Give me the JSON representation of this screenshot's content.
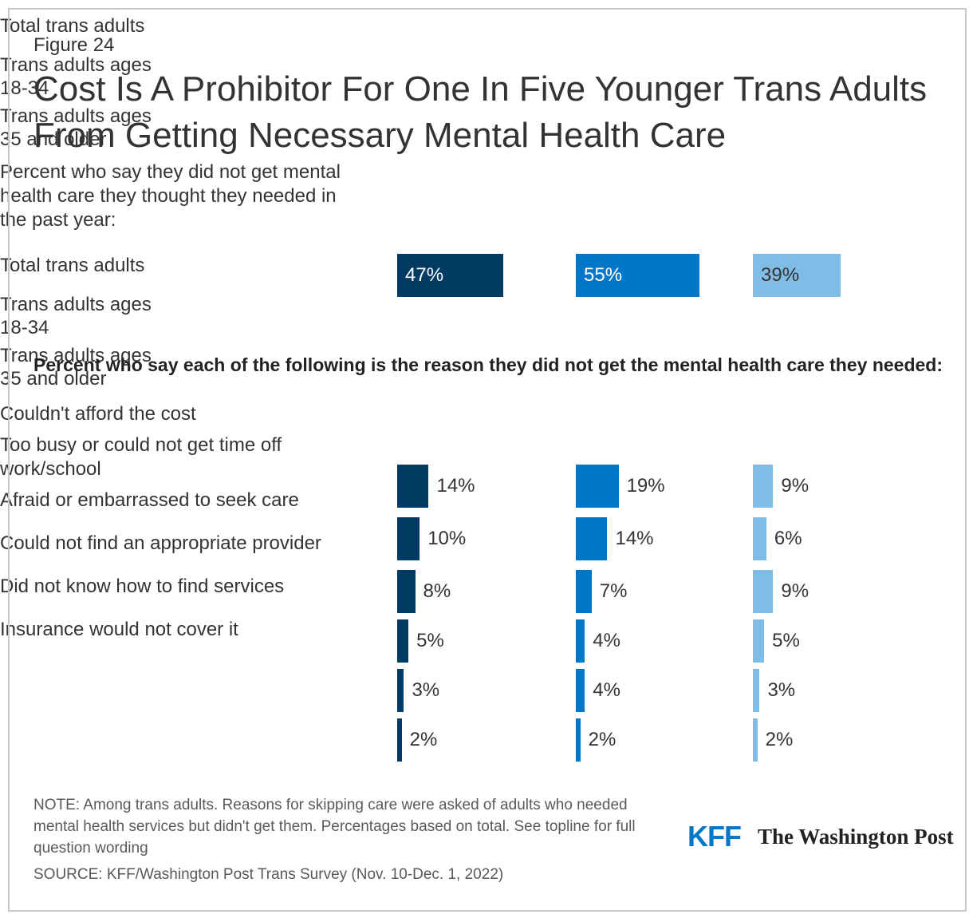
{
  "figure_label": "Figure 24",
  "title": "Cost Is A Prohibitor For One In Five Younger Trans Adults From Getting Necessary Mental Health Care",
  "note": "NOTE: Among trans adults. Reasons for skipping care were asked of adults who needed mental health services but didn't get them. Percentages based on total. See topline for full question wording",
  "source": "SOURCE: KFF/Washington Post Trans Survey (Nov. 10-Dec. 1, 2022)",
  "logos": [
    "KFF",
    "The Washington Post"
  ],
  "chart_data": [
    {
      "type": "bar",
      "categories": [
        "Percent who say they did not get mental health care they thought they needed in the past year:"
      ],
      "series": [
        {
          "name": "Total trans adults",
          "color": "#003b64",
          "values": [
            47
          ],
          "value_labels": [
            "47%"
          ]
        },
        {
          "name": "Trans adults ages 18-34",
          "color": "#0077c8",
          "values": [
            55
          ],
          "value_labels": [
            "55%"
          ]
        },
        {
          "name": "Trans adults ages 35 and older",
          "color": "#7fbde6",
          "values": [
            39
          ],
          "value_labels": [
            "39%"
          ]
        }
      ]
    },
    {
      "type": "bar",
      "subtitle": "Percent who say each of the following is the reason they did not get the mental health care they needed:",
      "categories": [
        "Couldn't afford the cost",
        "Too busy or could not get time off work/school",
        "Afraid or embarrassed to seek care",
        "Could not find an appropriate provider",
        "Did not know how to find services",
        "Insurance would not cover it"
      ],
      "series": [
        {
          "name": "Total trans adults",
          "color": "#003b64",
          "values": [
            14,
            10,
            8,
            5,
            3,
            2
          ],
          "value_labels": [
            "14%",
            "10%",
            "8%",
            "5%",
            "3%",
            "2%"
          ]
        },
        {
          "name": "Trans adults ages 18-34",
          "color": "#0077c8",
          "values": [
            19,
            14,
            7,
            4,
            4,
            2
          ],
          "value_labels": [
            "19%",
            "14%",
            "7%",
            "4%",
            "4%",
            "2%"
          ]
        },
        {
          "name": "Trans adults ages 35 and older",
          "color": "#7fbde6",
          "values": [
            9,
            6,
            9,
            5,
            3,
            2
          ],
          "value_labels": [
            "9%",
            "6%",
            "9%",
            "5%",
            "3%",
            "2%"
          ]
        }
      ]
    }
  ]
}
